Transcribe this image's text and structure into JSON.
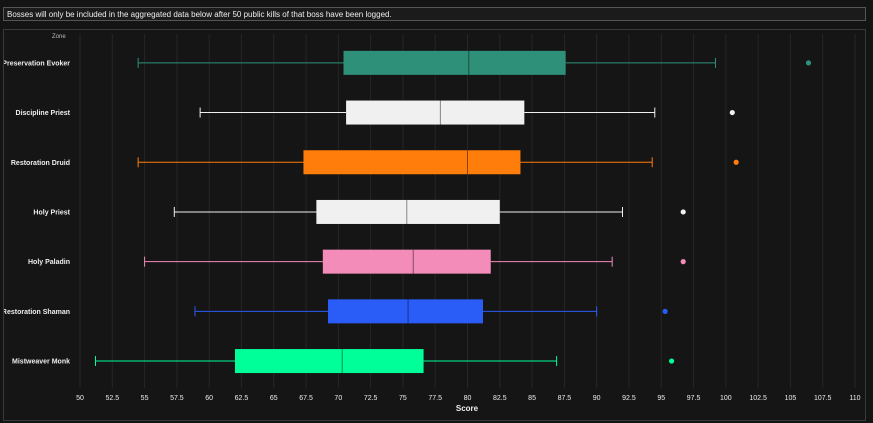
{
  "notice": {
    "text": "Bosses will only be included in the aggregated data below after 50 public kills of that boss have been logged."
  },
  "chart_data": {
    "type": "boxplot",
    "orientation": "horizontal",
    "corner_label": "Zone",
    "xlabel": "Score",
    "xlim": [
      50,
      110
    ],
    "xticks": [
      50,
      52.5,
      55,
      57.5,
      60,
      62.5,
      65,
      67.5,
      70,
      72.5,
      75,
      77.5,
      80,
      82.5,
      85,
      87.5,
      90,
      92.5,
      95,
      97.5,
      100,
      102.5,
      105,
      107.5,
      110
    ],
    "grid": "vertical",
    "categories": [
      "Preservation Evoker",
      "Discipline Priest",
      "Restoration Druid",
      "Holy Priest",
      "Holy Paladin",
      "Restoration Shaman",
      "Mistweaver Monk"
    ],
    "series": [
      {
        "category": "Preservation Evoker",
        "color": "#2e9079",
        "whisker_low": 54.5,
        "q1": 70.4,
        "median": 80.1,
        "q3": 87.6,
        "whisker_high": 99.2,
        "outliers": [
          106.4
        ]
      },
      {
        "category": "Discipline Priest",
        "color": "#f0f0f0",
        "whisker_low": 59.3,
        "q1": 70.6,
        "median": 77.9,
        "q3": 84.4,
        "whisker_high": 94.5,
        "outliers": [
          100.5
        ]
      },
      {
        "category": "Restoration Druid",
        "color": "#ff7d0a",
        "whisker_low": 54.5,
        "q1": 67.3,
        "median": 80.0,
        "q3": 84.1,
        "whisker_high": 94.3,
        "outliers": [
          100.8
        ]
      },
      {
        "category": "Holy Priest",
        "color": "#f0f0f0",
        "whisker_low": 57.3,
        "q1": 68.3,
        "median": 75.3,
        "q3": 82.5,
        "whisker_high": 92.0,
        "outliers": [
          96.7
        ]
      },
      {
        "category": "Holy Paladin",
        "color": "#f48cba",
        "whisker_low": 55.0,
        "q1": 68.8,
        "median": 75.8,
        "q3": 81.8,
        "whisker_high": 91.2,
        "outliers": [
          96.7
        ]
      },
      {
        "category": "Restoration Shaman",
        "color": "#2a5cf7",
        "whisker_low": 58.9,
        "q1": 69.2,
        "median": 75.4,
        "q3": 81.2,
        "whisker_high": 90.0,
        "outliers": [
          95.3
        ]
      },
      {
        "category": "Mistweaver Monk",
        "color": "#00ff98",
        "whisker_low": 51.2,
        "q1": 62.0,
        "median": 70.3,
        "q3": 76.6,
        "whisker_high": 86.9,
        "outliers": [
          95.8
        ]
      }
    ]
  }
}
